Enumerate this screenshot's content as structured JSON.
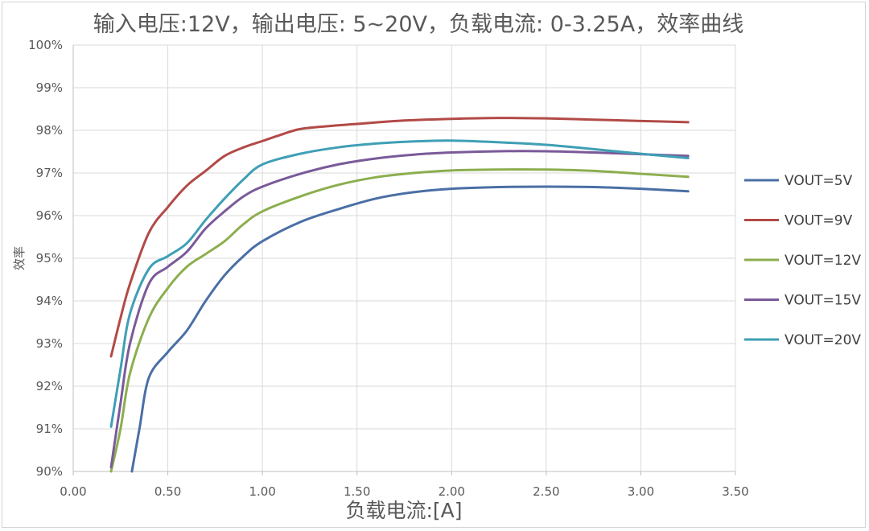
{
  "chart_data": {
    "type": "line",
    "title": "输入电压:12V，输出电压: 5~20V，负载电流: 0-3.25A，效率曲线",
    "xlabel": "负载电流:[A]",
    "ylabel": "效率",
    "xlim": [
      0,
      3.5
    ],
    "ylim": [
      90,
      100
    ],
    "x_ticks": [
      "0.00",
      "0.50",
      "1.00",
      "1.50",
      "2.00",
      "2.50",
      "3.00",
      "3.50"
    ],
    "y_ticks": [
      "90%",
      "91%",
      "92%",
      "93%",
      "94%",
      "95%",
      "96%",
      "97%",
      "98%",
      "99%",
      "100%"
    ],
    "grid": true,
    "legend_position": "right",
    "series": [
      {
        "name": "VOUT=5V",
        "color": "#4a6fa5",
        "points": [
          [
            0.31,
            90.0
          ],
          [
            0.35,
            91.0
          ],
          [
            0.4,
            92.2
          ],
          [
            0.5,
            92.8
          ],
          [
            0.6,
            93.3
          ],
          [
            0.7,
            94.0
          ],
          [
            0.8,
            94.6
          ],
          [
            0.9,
            95.05
          ],
          [
            1.0,
            95.4
          ],
          [
            1.2,
            95.85
          ],
          [
            1.4,
            96.15
          ],
          [
            1.6,
            96.4
          ],
          [
            1.8,
            96.55
          ],
          [
            2.0,
            96.63
          ],
          [
            2.25,
            96.67
          ],
          [
            2.5,
            96.68
          ],
          [
            2.75,
            96.67
          ],
          [
            3.0,
            96.63
          ],
          [
            3.25,
            96.57
          ]
        ]
      },
      {
        "name": "VOUT=9V",
        "color": "#b24a47",
        "points": [
          [
            0.2,
            92.7
          ],
          [
            0.25,
            93.6
          ],
          [
            0.3,
            94.4
          ],
          [
            0.4,
            95.6
          ],
          [
            0.5,
            96.2
          ],
          [
            0.6,
            96.7
          ],
          [
            0.7,
            97.05
          ],
          [
            0.8,
            97.4
          ],
          [
            0.9,
            97.6
          ],
          [
            1.0,
            97.75
          ],
          [
            1.1,
            97.9
          ],
          [
            1.2,
            98.03
          ],
          [
            1.35,
            98.1
          ],
          [
            1.5,
            98.15
          ],
          [
            1.75,
            98.23
          ],
          [
            2.0,
            98.27
          ],
          [
            2.25,
            98.29
          ],
          [
            2.5,
            98.28
          ],
          [
            2.75,
            98.25
          ],
          [
            3.0,
            98.22
          ],
          [
            3.25,
            98.19
          ]
        ]
      },
      {
        "name": "VOUT=12V",
        "color": "#8cae4f",
        "points": [
          [
            0.2,
            90.0
          ],
          [
            0.25,
            91.0
          ],
          [
            0.3,
            92.3
          ],
          [
            0.4,
            93.6
          ],
          [
            0.5,
            94.3
          ],
          [
            0.6,
            94.8
          ],
          [
            0.7,
            95.1
          ],
          [
            0.8,
            95.4
          ],
          [
            0.9,
            95.8
          ],
          [
            1.0,
            96.1
          ],
          [
            1.2,
            96.45
          ],
          [
            1.4,
            96.72
          ],
          [
            1.6,
            96.9
          ],
          [
            1.8,
            97.0
          ],
          [
            2.0,
            97.06
          ],
          [
            2.25,
            97.08
          ],
          [
            2.5,
            97.08
          ],
          [
            2.75,
            97.05
          ],
          [
            3.0,
            96.98
          ],
          [
            3.25,
            96.91
          ]
        ]
      },
      {
        "name": "VOUT=15V",
        "color": "#7a5a99",
        "points": [
          [
            0.2,
            90.1
          ],
          [
            0.25,
            91.6
          ],
          [
            0.3,
            93.0
          ],
          [
            0.4,
            94.4
          ],
          [
            0.5,
            94.8
          ],
          [
            0.6,
            95.15
          ],
          [
            0.7,
            95.7
          ],
          [
            0.8,
            96.1
          ],
          [
            0.9,
            96.45
          ],
          [
            1.0,
            96.68
          ],
          [
            1.2,
            96.98
          ],
          [
            1.4,
            97.2
          ],
          [
            1.6,
            97.34
          ],
          [
            1.8,
            97.43
          ],
          [
            2.0,
            97.48
          ],
          [
            2.25,
            97.51
          ],
          [
            2.5,
            97.51
          ],
          [
            2.75,
            97.48
          ],
          [
            3.0,
            97.44
          ],
          [
            3.25,
            97.4
          ]
        ]
      },
      {
        "name": "VOUT=20V",
        "color": "#3f9fb5",
        "points": [
          [
            0.2,
            91.05
          ],
          [
            0.25,
            92.4
          ],
          [
            0.3,
            93.7
          ],
          [
            0.4,
            94.75
          ],
          [
            0.5,
            95.05
          ],
          [
            0.6,
            95.35
          ],
          [
            0.7,
            95.9
          ],
          [
            0.8,
            96.4
          ],
          [
            0.9,
            96.85
          ],
          [
            1.0,
            97.2
          ],
          [
            1.2,
            97.45
          ],
          [
            1.4,
            97.6
          ],
          [
            1.6,
            97.69
          ],
          [
            1.8,
            97.74
          ],
          [
            2.0,
            97.76
          ],
          [
            2.25,
            97.72
          ],
          [
            2.5,
            97.66
          ],
          [
            2.75,
            97.56
          ],
          [
            3.0,
            97.45
          ],
          [
            3.25,
            97.35
          ]
        ]
      }
    ]
  }
}
